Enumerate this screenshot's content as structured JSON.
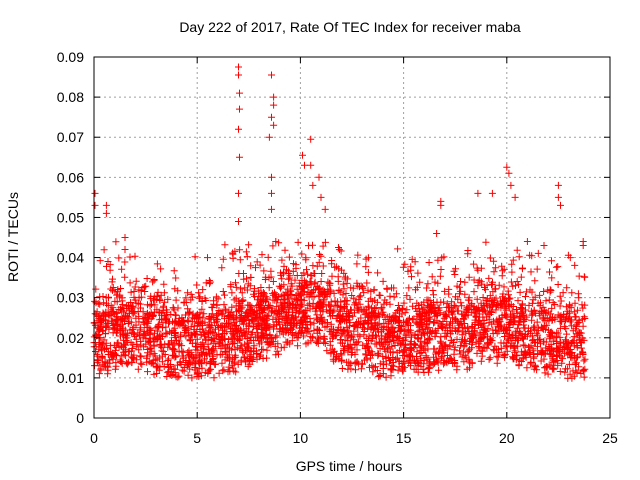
{
  "chart_data": {
    "type": "scatter",
    "title": "Day 222 of 2017, Rate Of TEC Index for receiver maba",
    "xlabel": "GPS time / hours",
    "ylabel": "ROTI / TECUs",
    "xlim": [
      0,
      25
    ],
    "ylim": [
      0,
      0.09
    ],
    "x_ticks": [
      "0",
      "5",
      "10",
      "15",
      "20",
      "25"
    ],
    "y_ticks": [
      "0",
      "0.01",
      "0.02",
      "0.03",
      "0.04",
      "0.05",
      "0.06",
      "0.07",
      "0.08",
      "0.09"
    ],
    "grid": true,
    "marker": "plus",
    "colors": {
      "points": "#ff0000",
      "grid": "#a0a0a0",
      "axes": "#000000"
    },
    "series": [
      {
        "values_profile": {
          "x_range": [
            0,
            23.8
          ],
          "typical_min": 0.006,
          "typical_max": 0.045,
          "median_trend": [
            [
              0,
              0.018
            ],
            [
              2,
              0.02
            ],
            [
              4,
              0.017
            ],
            [
              6,
              0.018
            ],
            [
              8,
              0.021
            ],
            [
              10,
              0.026
            ],
            [
              11,
              0.025
            ],
            [
              12,
              0.02
            ],
            [
              14,
              0.018
            ],
            [
              16,
              0.019
            ],
            [
              18,
              0.02
            ],
            [
              20,
              0.022
            ],
            [
              22,
              0.018
            ],
            [
              23.8,
              0.017
            ]
          ]
        },
        "peaks": [
          {
            "x": 0.05,
            "y": 0.056
          },
          {
            "x": 0.05,
            "y": 0.053
          },
          {
            "x": 0.6,
            "y": 0.053
          },
          {
            "x": 0.6,
            "y": 0.051
          },
          {
            "x": 1.5,
            "y": 0.045
          },
          {
            "x": 1.5,
            "y": 0.042
          },
          {
            "x": 7.0,
            "y": 0.0875
          },
          {
            "x": 7.0,
            "y": 0.0855
          },
          {
            "x": 7.05,
            "y": 0.081
          },
          {
            "x": 7.05,
            "y": 0.077
          },
          {
            "x": 7.0,
            "y": 0.072
          },
          {
            "x": 7.05,
            "y": 0.065
          },
          {
            "x": 7.0,
            "y": 0.056
          },
          {
            "x": 7.0,
            "y": 0.049
          },
          {
            "x": 8.6,
            "y": 0.0855
          },
          {
            "x": 8.7,
            "y": 0.08
          },
          {
            "x": 8.7,
            "y": 0.078
          },
          {
            "x": 8.6,
            "y": 0.075
          },
          {
            "x": 8.7,
            "y": 0.073
          },
          {
            "x": 8.5,
            "y": 0.07
          },
          {
            "x": 8.6,
            "y": 0.06
          },
          {
            "x": 8.6,
            "y": 0.056
          },
          {
            "x": 8.6,
            "y": 0.052
          },
          {
            "x": 10.1,
            "y": 0.0655
          },
          {
            "x": 10.2,
            "y": 0.063
          },
          {
            "x": 10.5,
            "y": 0.0695
          },
          {
            "x": 10.5,
            "y": 0.063
          },
          {
            "x": 10.6,
            "y": 0.058
          },
          {
            "x": 10.9,
            "y": 0.06
          },
          {
            "x": 11.0,
            "y": 0.055
          },
          {
            "x": 11.2,
            "y": 0.052
          },
          {
            "x": 16.8,
            "y": 0.054
          },
          {
            "x": 16.8,
            "y": 0.053
          },
          {
            "x": 18.6,
            "y": 0.056
          },
          {
            "x": 19.3,
            "y": 0.056
          },
          {
            "x": 20.0,
            "y": 0.0625
          },
          {
            "x": 20.1,
            "y": 0.061
          },
          {
            "x": 20.2,
            "y": 0.058
          },
          {
            "x": 20.4,
            "y": 0.055
          },
          {
            "x": 22.5,
            "y": 0.058
          },
          {
            "x": 22.5,
            "y": 0.055
          },
          {
            "x": 22.6,
            "y": 0.053
          },
          {
            "x": 23.7,
            "y": 0.044
          },
          {
            "x": 23.7,
            "y": 0.043
          },
          {
            "x": 16.6,
            "y": 0.046
          },
          {
            "x": 21.0,
            "y": 0.044
          },
          {
            "x": 21.8,
            "y": 0.043
          },
          {
            "x": 5.5,
            "y": 0.04
          }
        ]
      }
    ]
  }
}
